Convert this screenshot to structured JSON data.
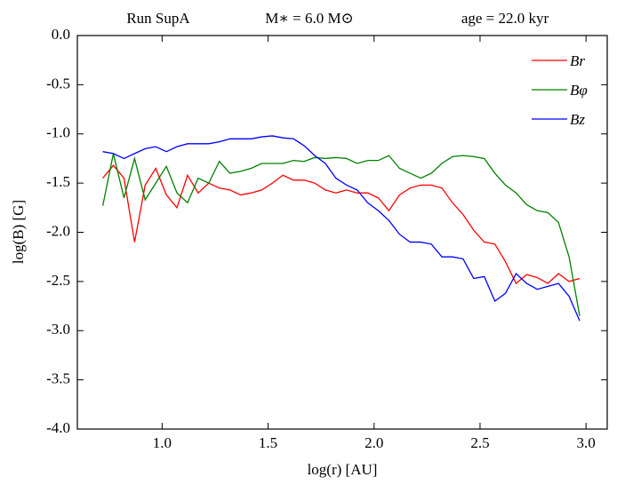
{
  "chart_data": {
    "type": "line",
    "annotations": [
      "Run SupA",
      "M∗ = 6.0 M⊙",
      "age = 22.0 kyr"
    ],
    "xlabel": "log(r) [AU]",
    "ylabel": "log(B) [G]",
    "x": [
      0.72,
      0.77,
      0.82,
      0.87,
      0.92,
      0.97,
      1.02,
      1.07,
      1.12,
      1.17,
      1.22,
      1.27,
      1.32,
      1.37,
      1.42,
      1.47,
      1.52,
      1.57,
      1.62,
      1.67,
      1.72,
      1.77,
      1.82,
      1.87,
      1.92,
      1.97,
      2.02,
      2.07,
      2.12,
      2.17,
      2.22,
      2.27,
      2.32,
      2.37,
      2.42,
      2.47,
      2.52,
      2.57,
      2.62,
      2.67,
      2.72,
      2.77,
      2.82,
      2.87,
      2.92,
      2.97
    ],
    "series": [
      {
        "name": "Br",
        "color": "#ff0000",
        "values": [
          -1.45,
          -1.32,
          -1.45,
          -2.1,
          -1.52,
          -1.35,
          -1.62,
          -1.75,
          -1.42,
          -1.6,
          -1.5,
          -1.55,
          -1.57,
          -1.62,
          -1.6,
          -1.57,
          -1.5,
          -1.42,
          -1.47,
          -1.47,
          -1.5,
          -1.57,
          -1.6,
          -1.57,
          -1.6,
          -1.6,
          -1.65,
          -1.78,
          -1.62,
          -1.55,
          -1.52,
          -1.52,
          -1.55,
          -1.7,
          -1.82,
          -1.98,
          -2.1,
          -2.12,
          -2.3,
          -2.52,
          -2.43,
          -2.46,
          -2.52,
          -2.42,
          -2.5,
          -2.47
        ]
      },
      {
        "name": "Bφ",
        "color": "#008000",
        "values": [
          -1.73,
          -1.2,
          -1.65,
          -1.25,
          -1.67,
          -1.5,
          -1.33,
          -1.6,
          -1.7,
          -1.45,
          -1.5,
          -1.28,
          -1.4,
          -1.38,
          -1.35,
          -1.3,
          -1.3,
          -1.3,
          -1.27,
          -1.28,
          -1.24,
          -1.25,
          -1.24,
          -1.25,
          -1.3,
          -1.27,
          -1.27,
          -1.22,
          -1.35,
          -1.4,
          -1.45,
          -1.4,
          -1.3,
          -1.23,
          -1.22,
          -1.23,
          -1.25,
          -1.4,
          -1.52,
          -1.6,
          -1.72,
          -1.78,
          -1.8,
          -1.9,
          -2.25,
          -2.85
        ]
      },
      {
        "name": "Bz",
        "color": "#0000ff",
        "values": [
          -1.18,
          -1.2,
          -1.25,
          -1.2,
          -1.15,
          -1.13,
          -1.18,
          -1.13,
          -1.1,
          -1.1,
          -1.1,
          -1.08,
          -1.05,
          -1.05,
          -1.05,
          -1.03,
          -1.02,
          -1.04,
          -1.05,
          -1.12,
          -1.22,
          -1.3,
          -1.45,
          -1.52,
          -1.57,
          -1.7,
          -1.78,
          -1.88,
          -2.02,
          -2.1,
          -2.1,
          -2.12,
          -2.25,
          -2.25,
          -2.27,
          -2.47,
          -2.45,
          -2.7,
          -2.62,
          -2.42,
          -2.52,
          -2.58,
          -2.55,
          -2.52,
          -2.65,
          -2.9
        ]
      }
    ],
    "xlim": [
      0.6,
      3.1
    ],
    "xticks": [
      {
        "value": 1.0,
        "label": "1.0"
      },
      1.5,
      {
        "value": 2.0,
        "label": "2.0"
      },
      2.5,
      {
        "value": 3.0,
        "label": "3.0"
      }
    ],
    "ylim": [
      -4.0,
      0.0
    ],
    "yticks": [
      {
        "value": 0.0,
        "label": "0.0"
      },
      -0.5,
      {
        "value": -1.0,
        "label": "-1.0"
      },
      -1.5,
      {
        "value": -2.0,
        "label": "-2.0"
      },
      -2.5,
      {
        "value": -3.0,
        "label": "-3.0"
      },
      -3.5,
      {
        "value": -4.0,
        "label": "-4.0"
      }
    ],
    "grid": false,
    "legend": "upper right"
  }
}
